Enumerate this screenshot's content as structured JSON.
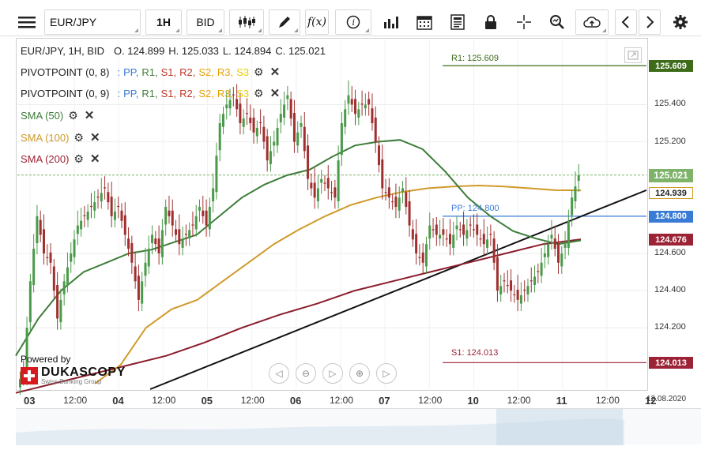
{
  "toolbar": {
    "symbol": "EUR/JPY",
    "timeframe": "1H",
    "price_side": "BID",
    "icons": [
      "menu-icon",
      "candles-icon",
      "pencil-icon",
      "fx-icon",
      "info-icon",
      "bars-icon",
      "calendar-icon",
      "report-icon",
      "lock-icon",
      "crosshair-icon",
      "zoom-icon",
      "cloud-icon",
      "chevron-left-icon",
      "chevron-right-icon",
      "gear-icon"
    ]
  },
  "ohlc": {
    "symbol": "EUR/JPY, 1H, BID",
    "open_label": "O. 124.899",
    "high_label": "H. 125.033",
    "low_label": "L. 124.894",
    "close_label": "C. 125.021"
  },
  "indicators": [
    {
      "name": "PIVOTPOINT (0, 8)",
      "color": "#222222"
    },
    {
      "name": "PIVOTPOINT (0, 9)",
      "color": "#222222"
    },
    {
      "name": "SMA (50)",
      "color": "#3e7d3a"
    },
    {
      "name": "SMA (100)",
      "color": "#d09a2a"
    },
    {
      "name": "SMA (200)",
      "color": "#9b2335"
    }
  ],
  "pivot_labels": {
    "sep": ":",
    "PP": "PP,",
    "R1": "R1,",
    "S1": "S1,",
    "R2": "R2,",
    "S2": "S2,",
    "R3": "R3,",
    "S3": "S3"
  },
  "pivot_colors": {
    "PP": "#3a7bd5",
    "R1": "#3e7d3a",
    "S1": "#c0392b",
    "R2": "#c0392b",
    "S2": "#e6a100",
    "R3": "#e6a100",
    "S3": "#e6cf00"
  },
  "levels": {
    "r1": {
      "label": "R1: 125.609",
      "value": 125.609,
      "color": "#3e6b1a"
    },
    "pp": {
      "label": "PP: 124.800",
      "value": 124.8,
      "color": "#3a7bd5"
    },
    "s1": {
      "label": "S1: 124.013",
      "value": 124.013,
      "color": "#9b2335"
    }
  },
  "price_tags": [
    {
      "text": "125.609",
      "color": "#3e6b1a"
    },
    {
      "text": "125.021",
      "color": "#7fb36a"
    },
    {
      "text": "124.939",
      "color": "#d09a2a"
    },
    {
      "text": "124.800",
      "color": "#3a7bd5"
    },
    {
      "text": "124.676",
      "color": "#9b2335"
    },
    {
      "text": "124.013",
      "color": "#9b2335"
    }
  ],
  "brand": {
    "powered_by": "Powered by",
    "name": "DUKASCOPY",
    "tagline": "Swiss Banking Group"
  },
  "chart_data": {
    "type": "candlestick",
    "title": "EUR/JPY, 1H, BID",
    "y_ticks": [
      "125.400",
      "125.200",
      "124.600",
      "124.400",
      "124.200"
    ],
    "ylim": [
      123.87,
      125.75
    ],
    "x_ticks": [
      {
        "label": "03",
        "day": true
      },
      {
        "label": "12:00",
        "day": false
      },
      {
        "label": "04",
        "day": true
      },
      {
        "label": "12:00",
        "day": false
      },
      {
        "label": "05",
        "day": true
      },
      {
        "label": "12:00",
        "day": false
      },
      {
        "label": "06",
        "day": true
      },
      {
        "label": "12:00",
        "day": false
      },
      {
        "label": "07",
        "day": true
      },
      {
        "label": "12:00",
        "day": false
      },
      {
        "label": "10",
        "day": true
      },
      {
        "label": "12:00",
        "day": false
      },
      {
        "label": "11",
        "day": true
      },
      {
        "label": "12:00",
        "day": false
      },
      {
        "label": "12",
        "day": true
      },
      {
        "label": "12.08.2020",
        "day": false
      }
    ],
    "close_path": [
      123.95,
      124.45,
      124.8,
      124.6,
      124.55,
      124.25,
      124.45,
      124.6,
      124.75,
      124.8,
      124.85,
      124.9,
      124.95,
      124.8,
      124.85,
      124.7,
      124.55,
      124.35,
      124.55,
      124.7,
      124.6,
      124.85,
      124.75,
      124.65,
      124.7,
      124.75,
      124.85,
      124.75,
      124.95,
      125.3,
      125.4,
      125.45,
      125.3,
      125.35,
      125.25,
      125.3,
      125.1,
      125.2,
      125.35,
      125.45,
      125.2,
      125.3,
      125.0,
      124.9,
      125.0,
      124.95,
      124.9,
      125.3,
      125.45,
      125.35,
      125.4,
      125.4,
      125.2,
      124.95,
      124.9,
      124.85,
      124.95,
      124.75,
      124.6,
      124.55,
      124.75,
      124.7,
      124.7,
      124.65,
      124.75,
      124.7,
      124.75,
      124.7,
      124.65,
      124.7,
      124.4,
      124.45,
      124.4,
      124.35,
      124.4,
      124.45,
      124.5,
      124.6,
      124.7,
      124.55,
      124.65,
      124.9,
      125.02
    ],
    "sma50": [
      124.05,
      124.25,
      124.4,
      124.5,
      124.55,
      124.6,
      124.62,
      124.66,
      124.7,
      124.8,
      124.9,
      124.97,
      125.02,
      125.05,
      125.12,
      125.18,
      125.2,
      125.21,
      125.16,
      125.04,
      124.9,
      124.8,
      124.72,
      124.68,
      124.65,
      124.67
    ],
    "sma100": [
      123.9,
      124.0,
      124.2,
      124.3,
      124.35,
      124.45,
      124.55,
      124.65,
      124.73,
      124.8,
      124.86,
      124.9,
      124.93,
      124.95,
      124.96,
      124.965,
      124.96,
      124.95,
      124.94,
      124.939
    ],
    "sma200": [
      123.85,
      123.9,
      123.95,
      124.0,
      124.05,
      124.12,
      124.2,
      124.27,
      124.33,
      124.4,
      124.45,
      124.5,
      124.55,
      124.6,
      124.65,
      124.676
    ],
    "trendline": [
      123.87,
      124.94
    ]
  }
}
